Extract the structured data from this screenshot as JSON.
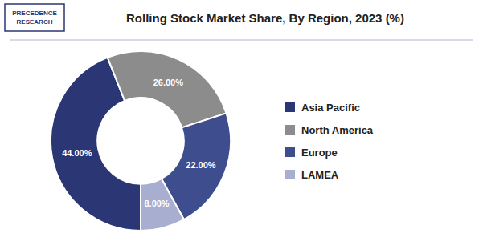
{
  "chart_data": {
    "type": "donut",
    "title": "Rolling Stock Market Share, By Region, 2023 (%)",
    "categories": [
      "Asia Pacific",
      "North America",
      "Europe",
      "LAMEA"
    ],
    "values": [
      44.0,
      26.0,
      22.0,
      8.0
    ],
    "value_labels": [
      "44.00%",
      "26.00%",
      "22.00%",
      "8.00%"
    ],
    "colors": [
      "#2b3674",
      "#8c8c8c",
      "#3d4d8e",
      "#a8aecf"
    ],
    "data_labels": true,
    "legend": "right",
    "annotations": [
      "PRECEDENCE",
      "RESEARCH"
    ]
  }
}
